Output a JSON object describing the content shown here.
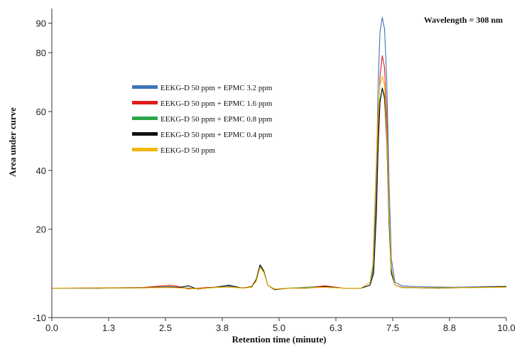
{
  "chart_data": {
    "type": "line",
    "title": "",
    "xlabel": "Retention time (minute)",
    "ylabel": "Area under curve",
    "annotation": "Wavelength = 308 nm",
    "xlim": [
      0,
      10
    ],
    "ylim": [
      -10,
      95
    ],
    "x_ticks": [
      "0.0",
      "1.3",
      "2.5",
      "3.8",
      "5.0",
      "6.3",
      "7.5",
      "8.8",
      "10.0"
    ],
    "y_ticks": [
      {
        "value": -10,
        "label": "-10"
      },
      {
        "value": 20,
        "label": "20"
      },
      {
        "value": 40,
        "label": "40"
      },
      {
        "value": 60,
        "label": "60"
      },
      {
        "value": 80,
        "label": "80"
      },
      {
        "value": 90,
        "label": "90"
      }
    ],
    "grid": false,
    "legend_position": "upper-left",
    "series": [
      {
        "name": "EEKG-D 50 ppm + EPMC 3.2 ppm",
        "color": "#3d73b9",
        "points": [
          [
            0,
            0
          ],
          [
            1.0,
            0
          ],
          [
            2.0,
            0.2
          ],
          [
            2.6,
            0.5
          ],
          [
            2.8,
            0.3
          ],
          [
            3.2,
            -0.2
          ],
          [
            3.6,
            0.3
          ],
          [
            3.9,
            0.8
          ],
          [
            4.2,
            0
          ],
          [
            4.4,
            0.5
          ],
          [
            4.5,
            3
          ],
          [
            4.58,
            8
          ],
          [
            4.66,
            6
          ],
          [
            4.75,
            1
          ],
          [
            4.9,
            -0.5
          ],
          [
            5.2,
            0
          ],
          [
            5.6,
            0.3
          ],
          [
            6.0,
            0.6
          ],
          [
            6.4,
            0
          ],
          [
            6.8,
            0
          ],
          [
            7.0,
            1
          ],
          [
            7.08,
            8
          ],
          [
            7.14,
            40
          ],
          [
            7.18,
            70
          ],
          [
            7.22,
            87
          ],
          [
            7.27,
            92
          ],
          [
            7.32,
            88
          ],
          [
            7.37,
            70
          ],
          [
            7.42,
            35
          ],
          [
            7.47,
            10
          ],
          [
            7.55,
            2
          ],
          [
            7.7,
            0.8
          ],
          [
            8.0,
            0.5
          ],
          [
            8.8,
            0.3
          ],
          [
            9.5,
            0.5
          ],
          [
            10.0,
            0.6
          ]
        ]
      },
      {
        "name": "EEKG-D 50 ppm + EPMC 1.6 ppm",
        "color": "#e21b1b",
        "points": [
          [
            0,
            0
          ],
          [
            1.0,
            0.1
          ],
          [
            2.0,
            0.2
          ],
          [
            2.6,
            1
          ],
          [
            2.75,
            0.7
          ],
          [
            3.0,
            -0.3
          ],
          [
            3.4,
            0.2
          ],
          [
            3.8,
            0.4
          ],
          [
            4.2,
            0.1
          ],
          [
            4.4,
            0.5
          ],
          [
            4.5,
            3
          ],
          [
            4.58,
            7.5
          ],
          [
            4.66,
            6
          ],
          [
            4.75,
            1
          ],
          [
            4.9,
            -0.5
          ],
          [
            5.2,
            0
          ],
          [
            5.6,
            0
          ],
          [
            6.0,
            0.8
          ],
          [
            6.4,
            0
          ],
          [
            6.8,
            0
          ],
          [
            7.0,
            1
          ],
          [
            7.08,
            6
          ],
          [
            7.14,
            30
          ],
          [
            7.18,
            55
          ],
          [
            7.22,
            72
          ],
          [
            7.27,
            79
          ],
          [
            7.32,
            75
          ],
          [
            7.37,
            58
          ],
          [
            7.42,
            25
          ],
          [
            7.47,
            6
          ],
          [
            7.55,
            1
          ],
          [
            7.7,
            0.3
          ],
          [
            8.5,
            0
          ],
          [
            9.5,
            0.3
          ],
          [
            10.0,
            0.5
          ]
        ]
      },
      {
        "name": "EEKG-D 50 ppm + EPMC 0.8 ppm",
        "color": "#2aa748",
        "points": [
          [
            0,
            0
          ],
          [
            1.0,
            0
          ],
          [
            2.0,
            0.1
          ],
          [
            2.6,
            0.3
          ],
          [
            2.9,
            0
          ],
          [
            3.2,
            -0.2
          ],
          [
            3.6,
            0.2
          ],
          [
            3.9,
            0.5
          ],
          [
            4.2,
            0
          ],
          [
            4.4,
            0.4
          ],
          [
            4.5,
            3
          ],
          [
            4.58,
            7.5
          ],
          [
            4.66,
            6
          ],
          [
            4.75,
            1
          ],
          [
            4.9,
            -0.3
          ],
          [
            5.2,
            0
          ],
          [
            5.6,
            0.2
          ],
          [
            6.0,
            0.3
          ],
          [
            6.4,
            0
          ],
          [
            6.8,
            0
          ],
          [
            7.0,
            1
          ],
          [
            7.08,
            6
          ],
          [
            7.14,
            28
          ],
          [
            7.18,
            50
          ],
          [
            7.22,
            64
          ],
          [
            7.27,
            68
          ],
          [
            7.32,
            64
          ],
          [
            7.37,
            50
          ],
          [
            7.42,
            22
          ],
          [
            7.47,
            6
          ],
          [
            7.55,
            1
          ],
          [
            7.7,
            0.2
          ],
          [
            8.5,
            0.1
          ],
          [
            9.5,
            0.3
          ],
          [
            10.0,
            0.4
          ]
        ]
      },
      {
        "name": "EEKG-D 50 ppm + EPMC 0.4 ppm",
        "color": "#111111",
        "points": [
          [
            0,
            0
          ],
          [
            1.0,
            0
          ],
          [
            2.0,
            0.1
          ],
          [
            2.6,
            0.4
          ],
          [
            2.8,
            0.2
          ],
          [
            3.0,
            0.8
          ],
          [
            3.2,
            -0.3
          ],
          [
            3.6,
            0.3
          ],
          [
            3.9,
            1
          ],
          [
            4.2,
            0
          ],
          [
            4.4,
            0.5
          ],
          [
            4.5,
            3
          ],
          [
            4.58,
            7.8
          ],
          [
            4.66,
            6
          ],
          [
            4.75,
            1
          ],
          [
            4.9,
            -0.5
          ],
          [
            5.2,
            0
          ],
          [
            5.6,
            0
          ],
          [
            6.0,
            0.5
          ],
          [
            6.4,
            0
          ],
          [
            6.8,
            0
          ],
          [
            7.0,
            1
          ],
          [
            7.08,
            5
          ],
          [
            7.14,
            25
          ],
          [
            7.18,
            48
          ],
          [
            7.22,
            63
          ],
          [
            7.27,
            68
          ],
          [
            7.32,
            65
          ],
          [
            7.37,
            50
          ],
          [
            7.42,
            22
          ],
          [
            7.47,
            5
          ],
          [
            7.55,
            1
          ],
          [
            7.7,
            0.2
          ],
          [
            8.5,
            0
          ],
          [
            9.5,
            0.3
          ],
          [
            10.0,
            0.5
          ]
        ]
      },
      {
        "name": "EEKG-D 50 ppm",
        "color": "#f2b705",
        "points": [
          [
            0,
            0
          ],
          [
            1.0,
            0.1
          ],
          [
            2.0,
            0.1
          ],
          [
            2.6,
            0.2
          ],
          [
            2.9,
            0
          ],
          [
            3.2,
            -0.2
          ],
          [
            3.6,
            0.2
          ],
          [
            3.9,
            0.4
          ],
          [
            4.2,
            0
          ],
          [
            4.4,
            0.3
          ],
          [
            4.5,
            2.5
          ],
          [
            4.58,
            7
          ],
          [
            4.66,
            5.5
          ],
          [
            4.75,
            1
          ],
          [
            4.9,
            -0.3
          ],
          [
            5.2,
            0
          ],
          [
            5.6,
            0.1
          ],
          [
            6.0,
            0.3
          ],
          [
            6.4,
            0
          ],
          [
            6.8,
            0
          ],
          [
            7.0,
            2
          ],
          [
            7.06,
            8
          ],
          [
            7.12,
            35
          ],
          [
            7.17,
            58
          ],
          [
            7.22,
            69
          ],
          [
            7.27,
            72
          ],
          [
            7.32,
            69
          ],
          [
            7.37,
            52
          ],
          [
            7.42,
            25
          ],
          [
            7.47,
            7
          ],
          [
            7.55,
            1
          ],
          [
            7.7,
            0.2
          ],
          [
            8.5,
            0.1
          ],
          [
            9.5,
            0.2
          ],
          [
            10.0,
            0.3
          ]
        ]
      }
    ]
  }
}
